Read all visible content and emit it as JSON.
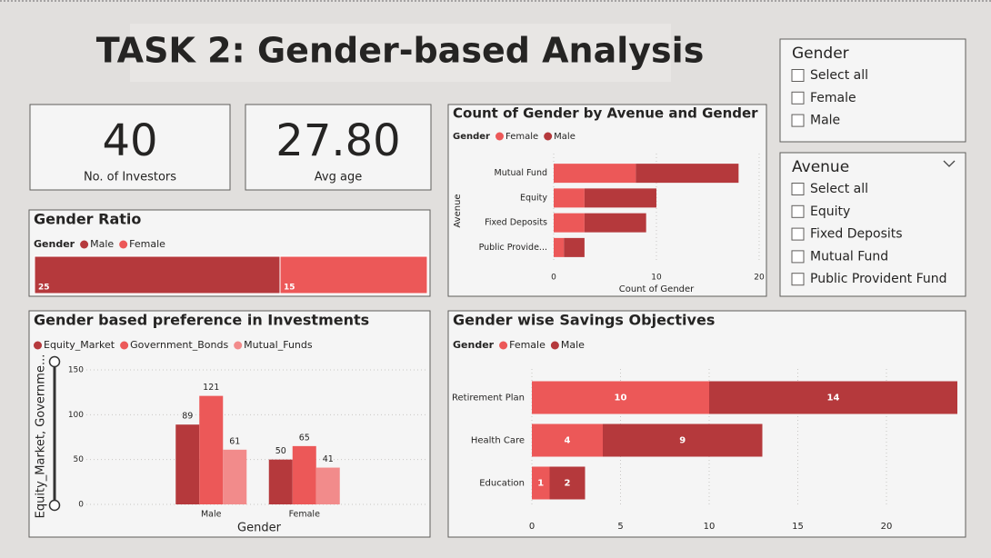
{
  "title": "TASK 2: Gender-based Analysis",
  "cards": [
    {
      "value": "40",
      "label": "No. of Investors"
    },
    {
      "value": "27.80",
      "label": "Avg age"
    }
  ],
  "slicers": {
    "gender": {
      "title": "Gender",
      "options": [
        "Select all",
        "Female",
        "Male"
      ]
    },
    "avenue": {
      "title": "Avenue",
      "options": [
        "Select all",
        "Equity",
        "Fixed Deposits",
        "Mutual Fund",
        "Public Provident Fund"
      ]
    }
  },
  "chart_data": [
    {
      "type": "bar",
      "orientation": "horizontal",
      "stacked": true,
      "title": "Count of Gender by Avenue and Gender",
      "legend_title": "Gender",
      "xlabel": "Count of Gender",
      "ylabel": "Avenue",
      "categories": [
        "Mutual Fund",
        "Equity",
        "Fixed Deposits",
        "Public Provide..."
      ],
      "series": [
        {
          "name": "Female",
          "color": "#ec5858",
          "values": [
            8,
            3,
            3,
            1
          ]
        },
        {
          "name": "Male",
          "color": "#b5393c",
          "values": [
            10,
            7,
            6,
            2
          ]
        }
      ],
      "xlim": [
        0,
        20.5
      ],
      "xticks": [
        0,
        10,
        20
      ],
      "grid": true
    },
    {
      "type": "bar",
      "orientation": "horizontal",
      "stacked": true,
      "title": "Gender Ratio",
      "legend_title": "Gender",
      "categories": [
        null
      ],
      "series": [
        {
          "name": "Male",
          "color": "#b5393c",
          "values": [
            25
          ]
        },
        {
          "name": "Female",
          "color": "#ec5858",
          "values": [
            15
          ]
        }
      ]
    },
    {
      "type": "bar",
      "orientation": "vertical",
      "stacked": false,
      "title": "Gender based preference in Investments",
      "xlabel": "Gender",
      "ylabel": "Equity_Market, Governme...",
      "categories": [
        "Male",
        "Female"
      ],
      "series": [
        {
          "name": "Equity_Market",
          "color": "#b5393c",
          "values": [
            89,
            50
          ]
        },
        {
          "name": "Government_Bonds",
          "color": "#ec5858",
          "values": [
            121,
            65
          ]
        },
        {
          "name": "Mutual_Funds",
          "color": "#f28b8b",
          "values": [
            61,
            41
          ]
        }
      ],
      "ylim": [
        0,
        150
      ],
      "yticks": [
        0,
        50,
        100,
        150
      ],
      "grid": true
    },
    {
      "type": "bar",
      "orientation": "horizontal",
      "stacked": true,
      "title": "Gender wise Savings Objectives",
      "legend_title": "Gender",
      "categories": [
        "Retirement Plan",
        "Health Care",
        "Education"
      ],
      "series": [
        {
          "name": "Female",
          "color": "#ec5858",
          "values": [
            10,
            4,
            1
          ]
        },
        {
          "name": "Male",
          "color": "#b5393c",
          "values": [
            14,
            9,
            2
          ]
        }
      ],
      "xlim": [
        0,
        24.5
      ],
      "xticks": [
        0,
        5,
        10,
        15,
        20
      ],
      "grid": true
    }
  ]
}
